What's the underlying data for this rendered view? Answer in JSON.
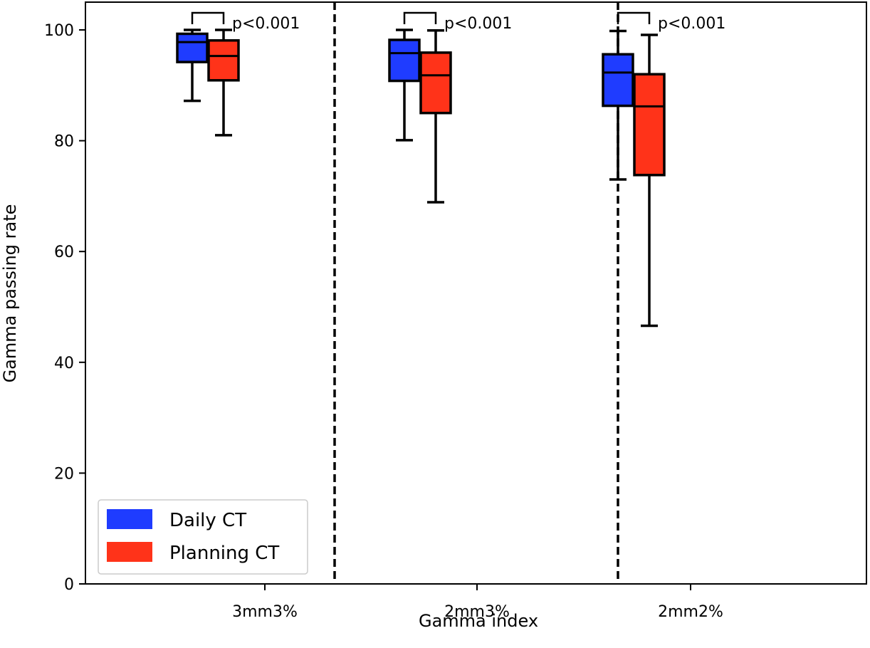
{
  "chart_data": {
    "type": "box",
    "title": "",
    "xlabel": "Gamma index",
    "ylabel": "Gamma passing rate",
    "ylim": [
      0,
      105
    ],
    "yticks": [
      0,
      20,
      40,
      60,
      80,
      100
    ],
    "categories": [
      "3mm3%",
      "2mm3%",
      "2mm2%"
    ],
    "series": [
      {
        "name": "Daily CT",
        "color": "#1f3cff",
        "boxes": [
          {
            "whisker_low": 87.2,
            "q1": 94.2,
            "median": 97.8,
            "q3": 99.3,
            "whisker_high": 100.0
          },
          {
            "whisker_low": 80.1,
            "q1": 90.8,
            "median": 95.8,
            "q3": 98.2,
            "whisker_high": 100.0
          },
          {
            "whisker_low": 73.0,
            "q1": 86.3,
            "median": 92.3,
            "q3": 95.6,
            "whisker_high": 99.8
          }
        ]
      },
      {
        "name": "Planning CT",
        "color": "#ff3319",
        "boxes": [
          {
            "whisker_low": 81.0,
            "q1": 90.9,
            "median": 95.3,
            "q3": 98.1,
            "whisker_high": 100.0
          },
          {
            "whisker_low": 68.9,
            "q1": 85.0,
            "median": 91.8,
            "q3": 95.9,
            "whisker_high": 99.9
          },
          {
            "whisker_low": 46.6,
            "q1": 73.8,
            "median": 86.2,
            "q3": 92.0,
            "whisker_high": 99.1
          }
        ]
      }
    ],
    "annotations": [
      "p<0.001",
      "p<0.001",
      "p<0.001"
    ],
    "legend_position": "lower-left",
    "group_separators": "dashed vertical lines between groups"
  }
}
